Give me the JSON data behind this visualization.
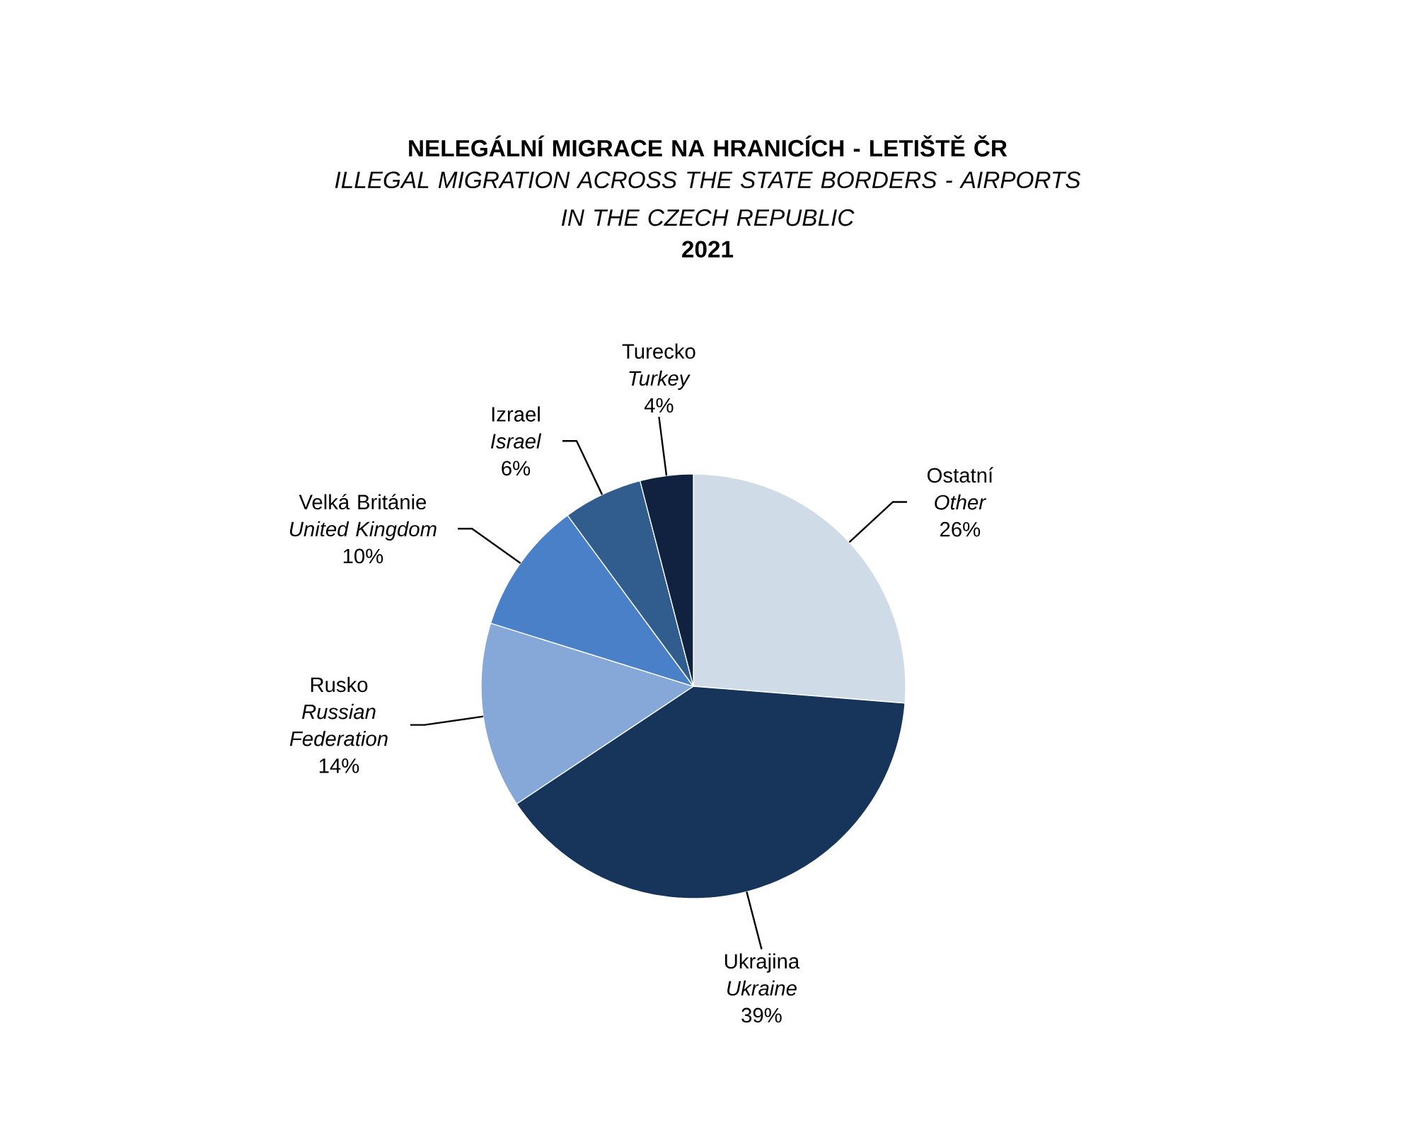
{
  "chart_data": {
    "type": "pie",
    "title": "NELEGÁLNÍ MIGRACE NA HRANICÍCH - LETIŠTĚ ČR",
    "subtitle": "ILLEGAL MIGRATION ACROSS THE STATE BORDERS - AIRPORTS\nIN THE CZECH REPUBLIC",
    "annotations": [
      "2021"
    ],
    "categories": [
      "Ostatní\n*Other*",
      "Ukrajina\n*Ukraine*",
      "Rusko\n*Russian*\n*Federation*",
      "Velká Británie\n*United Kingdom*",
      "Izrael\n*Israel*",
      "Turecko\n*Turkey*"
    ],
    "values": [
      26,
      39,
      14,
      10,
      6,
      4
    ],
    "colors": [
      "#d0dbe8",
      "#17345a",
      "#85a8d8",
      "#4a80c8",
      "#315d8e",
      "#10223f"
    ],
    "value_labels": [
      "26%",
      "39%",
      "14%",
      "10%",
      "6%",
      "4%"
    ]
  }
}
